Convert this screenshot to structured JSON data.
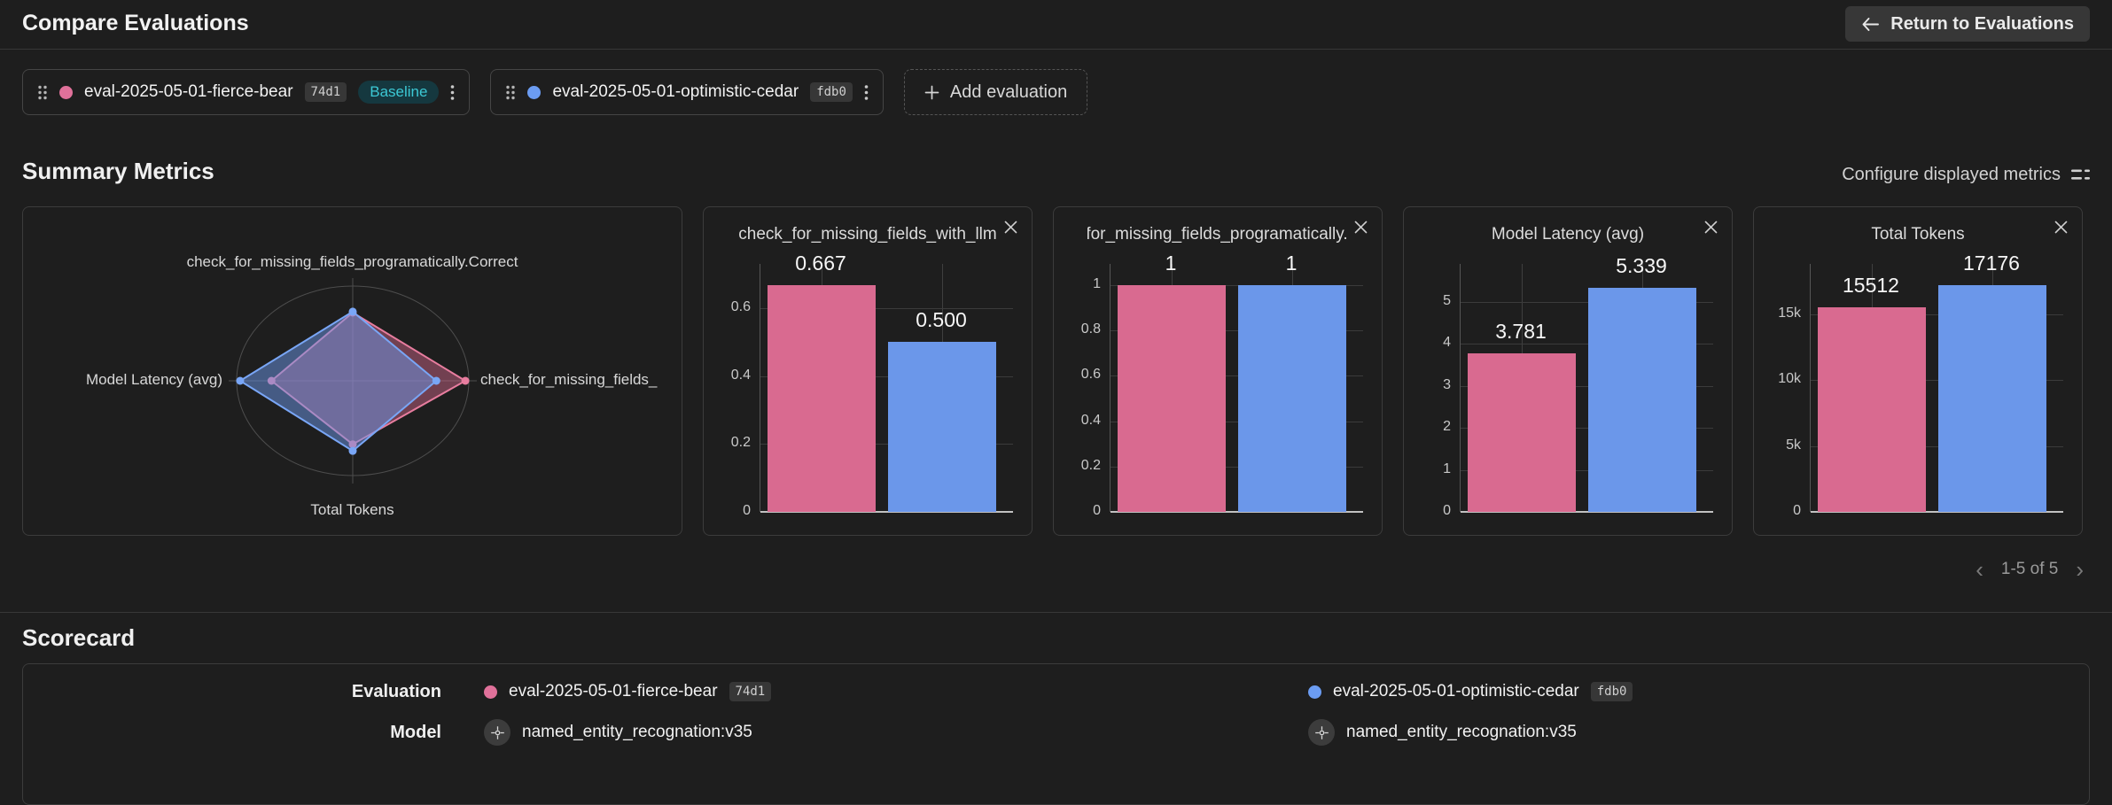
{
  "header": {
    "title": "Compare Evaluations",
    "return_button_label": "Return to Evaluations"
  },
  "evaluations": [
    {
      "name": "eval-2025-05-01-fierce-bear",
      "hash": "74d1",
      "badge": "Baseline",
      "color": "#e0719a"
    },
    {
      "name": "eval-2025-05-01-optimistic-cedar",
      "hash": "fdb0",
      "badge": null,
      "color": "#6b9cf2"
    }
  ],
  "add_evaluation_label": "Add evaluation",
  "summary": {
    "title": "Summary Metrics",
    "configure_label": "Configure displayed metrics",
    "pagination": "1-5 of 5"
  },
  "chart_data": [
    {
      "type": "radar",
      "title": "",
      "axes": [
        "check_for_missing_fields_programatically.Correct",
        "check_for_missing_fields_",
        "Total Tokens",
        "Model Latency (avg)"
      ],
      "axis_positions": [
        "top",
        "right",
        "bottom",
        "left"
      ],
      "note": "r values are radial fractions of the outer ring per axis (top,right,bottom,left)",
      "series": [
        {
          "name": "eval-2025-05-01-fierce-bear",
          "color": "#e87d9f",
          "fill": "rgba(217,106,144,0.45)",
          "r": [
            0.72,
            0.97,
            0.67,
            0.7
          ]
        },
        {
          "name": "eval-2025-05-01-optimistic-cedar",
          "color": "#79a6f6",
          "fill": "rgba(107,151,234,0.50)",
          "r": [
            0.73,
            0.72,
            0.74,
            0.97
          ]
        }
      ]
    },
    {
      "type": "bar",
      "title": "check_for_missing_fields_with_llm",
      "categories": [
        "eval-2025-05-01-fierce-bear",
        "eval-2025-05-01-optimistic-cedar"
      ],
      "series": [
        {
          "name": "eval-2025-05-01-fierce-bear",
          "color": "#d96a90",
          "value": 0.667,
          "label": "0.667"
        },
        {
          "name": "eval-2025-05-01-optimistic-cedar",
          "color": "#6b97ea",
          "value": 0.5,
          "label": "0.500"
        }
      ],
      "yticks": [
        {
          "value": 0,
          "label": "0"
        },
        {
          "value": 0.2,
          "label": "0.2"
        },
        {
          "value": 0.4,
          "label": "0.4"
        },
        {
          "value": 0.6,
          "label": "0.6"
        }
      ],
      "ylim": [
        0,
        0.73
      ]
    },
    {
      "type": "bar",
      "title": "check_for_missing_fields_programatically.Correct",
      "categories": [
        "eval-2025-05-01-fierce-bear",
        "eval-2025-05-01-optimistic-cedar"
      ],
      "series": [
        {
          "name": "eval-2025-05-01-fierce-bear",
          "color": "#d96a90",
          "value": 1,
          "label": "1"
        },
        {
          "name": "eval-2025-05-01-optimistic-cedar",
          "color": "#6b97ea",
          "value": 1,
          "label": "1"
        }
      ],
      "yticks": [
        {
          "value": 0,
          "label": "0"
        },
        {
          "value": 0.2,
          "label": "0.2"
        },
        {
          "value": 0.4,
          "label": "0.4"
        },
        {
          "value": 0.6,
          "label": "0.6"
        },
        {
          "value": 0.8,
          "label": "0.8"
        },
        {
          "value": 1,
          "label": "1"
        }
      ],
      "ylim": [
        0,
        1.094
      ]
    },
    {
      "type": "bar",
      "title": "Model Latency (avg)",
      "categories": [
        "eval-2025-05-01-fierce-bear",
        "eval-2025-05-01-optimistic-cedar"
      ],
      "series": [
        {
          "name": "eval-2025-05-01-fierce-bear",
          "color": "#d96a90",
          "value": 3.781,
          "label": "3.781"
        },
        {
          "name": "eval-2025-05-01-optimistic-cedar",
          "color": "#6b97ea",
          "value": 5.339,
          "label": "5.339"
        }
      ],
      "yticks": [
        {
          "value": 0,
          "label": "0"
        },
        {
          "value": 1,
          "label": "1"
        },
        {
          "value": 2,
          "label": "2"
        },
        {
          "value": 3,
          "label": "3"
        },
        {
          "value": 4,
          "label": "4"
        },
        {
          "value": 5,
          "label": "5"
        }
      ],
      "ylim": [
        0,
        5.9
      ]
    },
    {
      "type": "bar",
      "title": "Total Tokens",
      "categories": [
        "eval-2025-05-01-fierce-bear",
        "eval-2025-05-01-optimistic-cedar"
      ],
      "series": [
        {
          "name": "eval-2025-05-01-fierce-bear",
          "color": "#d96a90",
          "value": 15512,
          "label": "15512"
        },
        {
          "name": "eval-2025-05-01-optimistic-cedar",
          "color": "#6b97ea",
          "value": 17176,
          "label": "17176"
        }
      ],
      "yticks": [
        {
          "value": 0,
          "label": "0"
        },
        {
          "value": 5000,
          "label": "5k"
        },
        {
          "value": 10000,
          "label": "10k"
        },
        {
          "value": 15000,
          "label": "15k"
        }
      ],
      "ylim": [
        0,
        18800
      ]
    }
  ],
  "scorecard": {
    "title": "Scorecard",
    "row_labels": {
      "evaluation": "Evaluation",
      "model": "Model"
    },
    "models": [
      {
        "name": "named_entity_recognation:v35"
      },
      {
        "name": "named_entity_recognation:v35"
      }
    ]
  }
}
